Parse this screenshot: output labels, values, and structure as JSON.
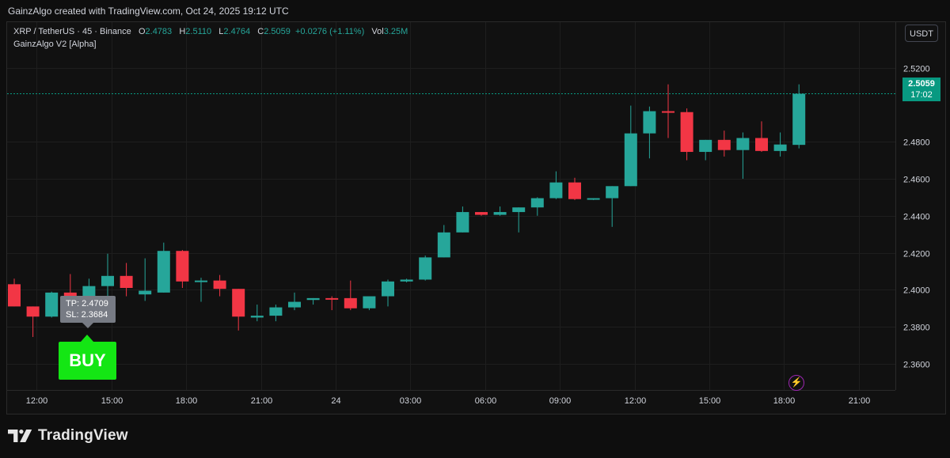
{
  "header": {
    "attribution": "GainzAlgo created with TradingView.com, Oct 24, 2025 19:12 UTC"
  },
  "legend": {
    "symbol": "XRP / TetherUS · 45 · Binance",
    "open_label": "O",
    "open": "2.4783",
    "high_label": "H",
    "high": "2.5110",
    "low_label": "L",
    "low": "2.4764",
    "close_label": "C",
    "close": "2.5059",
    "change": "+0.0276 (+1.11%)",
    "vol_label": "Vol",
    "vol": "3.25M",
    "indicator": "GainzAlgo V2 [Alpha]"
  },
  "currency_button": "USDT",
  "last_price": {
    "price": "2.5059",
    "countdown": "17:02"
  },
  "signal": {
    "tp": "TP: 2.4709",
    "sl": "SL: 2.3684",
    "label": "BUY"
  },
  "brand": {
    "name": "TradingView",
    "icon": "tradingview-logo"
  },
  "colors": {
    "up": "#26a69a",
    "down": "#f23645",
    "buy": "#14e614",
    "last_price": "#089981"
  },
  "chart_data": {
    "type": "candlestick",
    "symbol": "XRP / TetherUS",
    "interval": "45",
    "ylim": [
      2.351,
      2.5305
    ],
    "y_ticks": [
      "2.3600",
      "2.3800",
      "2.4000",
      "2.4200",
      "2.4400",
      "2.4600",
      "2.4800",
      "2.5200"
    ],
    "x_ticks": [
      "12:00",
      "15:00",
      "18:00",
      "21:00",
      "24",
      "03:00",
      "06:00",
      "09:00",
      "12:00",
      "15:00",
      "18:00",
      "21:00"
    ],
    "candles": [
      {
        "o": 2.403,
        "h": 2.406,
        "l": 2.391,
        "c": 2.391
      },
      {
        "o": 2.391,
        "h": 2.391,
        "l": 2.3745,
        "c": 2.3855
      },
      {
        "o": 2.3855,
        "h": 2.399,
        "l": 2.385,
        "c": 2.3985
      },
      {
        "o": 2.3985,
        "h": 2.4085,
        "l": 2.394,
        "c": 2.396
      },
      {
        "o": 2.3965,
        "h": 2.406,
        "l": 2.394,
        "c": 2.402
      },
      {
        "o": 2.402,
        "h": 2.4195,
        "l": 2.396,
        "c": 2.4075
      },
      {
        "o": 2.4075,
        "h": 2.4145,
        "l": 2.3965,
        "c": 2.401
      },
      {
        "o": 2.3975,
        "h": 2.417,
        "l": 2.394,
        "c": 2.3995
      },
      {
        "o": 2.3985,
        "h": 2.4255,
        "l": 2.3985,
        "c": 2.421
      },
      {
        "o": 2.421,
        "h": 2.4215,
        "l": 2.401,
        "c": 2.4045
      },
      {
        "o": 2.4045,
        "h": 2.4065,
        "l": 2.3935,
        "c": 2.405
      },
      {
        "o": 2.405,
        "h": 2.408,
        "l": 2.3965,
        "c": 2.4005
      },
      {
        "o": 2.4005,
        "h": 2.4005,
        "l": 2.378,
        "c": 2.3855
      },
      {
        "o": 2.385,
        "h": 2.392,
        "l": 2.383,
        "c": 2.386
      },
      {
        "o": 2.386,
        "h": 2.392,
        "l": 2.383,
        "c": 2.3905
      },
      {
        "o": 2.3905,
        "h": 2.3985,
        "l": 2.389,
        "c": 2.3935
      },
      {
        "o": 2.3945,
        "h": 2.3955,
        "l": 2.392,
        "c": 2.3955
      },
      {
        "o": 2.3955,
        "h": 2.3965,
        "l": 2.389,
        "c": 2.395
      },
      {
        "o": 2.3955,
        "h": 2.405,
        "l": 2.389,
        "c": 2.39
      },
      {
        "o": 2.39,
        "h": 2.396,
        "l": 2.389,
        "c": 2.3965
      },
      {
        "o": 2.3965,
        "h": 2.4055,
        "l": 2.391,
        "c": 2.4045
      },
      {
        "o": 2.4045,
        "h": 2.406,
        "l": 2.404,
        "c": 2.4055
      },
      {
        "o": 2.4055,
        "h": 2.4185,
        "l": 2.405,
        "c": 2.4175
      },
      {
        "o": 2.4175,
        "h": 2.435,
        "l": 2.4175,
        "c": 2.431
      },
      {
        "o": 2.431,
        "h": 2.445,
        "l": 2.431,
        "c": 2.442
      },
      {
        "o": 2.442,
        "h": 2.442,
        "l": 2.44,
        "c": 2.4405
      },
      {
        "o": 2.4405,
        "h": 2.445,
        "l": 2.44,
        "c": 2.442
      },
      {
        "o": 2.442,
        "h": 2.4445,
        "l": 2.431,
        "c": 2.4445
      },
      {
        "o": 2.4445,
        "h": 2.45,
        "l": 2.44,
        "c": 2.4495
      },
      {
        "o": 2.4495,
        "h": 2.464,
        "l": 2.449,
        "c": 2.458
      },
      {
        "o": 2.458,
        "h": 2.4605,
        "l": 2.4485,
        "c": 2.449
      },
      {
        "o": 2.449,
        "h": 2.4495,
        "l": 2.4485,
        "c": 2.4495
      },
      {
        "o": 2.4495,
        "h": 2.456,
        "l": 2.434,
        "c": 2.456
      },
      {
        "o": 2.456,
        "h": 2.4995,
        "l": 2.456,
        "c": 2.4845
      },
      {
        "o": 2.4845,
        "h": 2.499,
        "l": 2.471,
        "c": 2.4965
      },
      {
        "o": 2.4965,
        "h": 2.511,
        "l": 2.482,
        "c": 2.496
      },
      {
        "o": 2.496,
        "h": 2.498,
        "l": 2.47,
        "c": 2.4745
      },
      {
        "o": 2.4745,
        "h": 2.481,
        "l": 2.47,
        "c": 2.481
      },
      {
        "o": 2.481,
        "h": 2.486,
        "l": 2.472,
        "c": 2.4755
      },
      {
        "o": 2.4755,
        "h": 2.485,
        "l": 2.46,
        "c": 2.482
      },
      {
        "o": 2.482,
        "h": 2.491,
        "l": 2.4745,
        "c": 2.475
      },
      {
        "o": 2.475,
        "h": 2.485,
        "l": 2.472,
        "c": 2.4785
      },
      {
        "o": 2.4783,
        "h": 2.511,
        "l": 2.4764,
        "c": 2.5059
      }
    ],
    "last_price": 2.5059
  }
}
